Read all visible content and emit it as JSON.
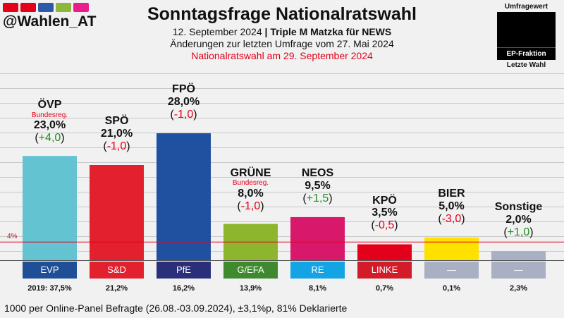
{
  "header": {
    "handle": "@Wahlen_AT",
    "flag_colors": [
      "#e2001a",
      "#e2001a",
      "#2d5aa8",
      "#8db63c",
      "#e91e8c"
    ],
    "title": "Sonntagsfrage Nationalratswahl",
    "subtitle_date": "12. September 2024",
    "subtitle_sep": " | ",
    "subtitle_source": "Triple M Matzka für NEWS",
    "subtitle_changes": "Änderungen zur letzten Umfrage vom 27. Mai 2024",
    "subtitle_election": "Nationalratswahl am 29. September 2024"
  },
  "legend": {
    "top": "Umfragewert",
    "middle": "EP-Fraktion",
    "bottom": "Letzte Wahl"
  },
  "threshold_label": "4%",
  "footer": "1000 per Online-Panel Befragte (26.08.-03.09.2024), ±3,1%p, 81% Deklarierte",
  "parties": [
    {
      "name": "ÖVP",
      "gov": "Bundesreg.",
      "pct": "23,0%",
      "change": "(+4,0)",
      "change_sign": "pos",
      "ep": "EVP",
      "last": "2019: 37,5%",
      "color": "#63c3d1",
      "ep_color": "#1f4f96"
    },
    {
      "name": "SPÖ",
      "gov": "",
      "pct": "21,0%",
      "change": "(-1,0)",
      "change_sign": "neg",
      "ep": "S&D",
      "last": "21,2%",
      "color": "#e3202e",
      "ep_color": "#e3202e"
    },
    {
      "name": "FPÖ",
      "gov": "",
      "pct": "28,0%",
      "change": "(-1,0)",
      "change_sign": "neg",
      "ep": "PfE",
      "last": "16,2%",
      "color": "#2050a0",
      "ep_color": "#2b2f7a"
    },
    {
      "name": "GRÜNE",
      "gov": "Bundesreg.",
      "pct": "8,0%",
      "change": "(-1,0)",
      "change_sign": "neg",
      "ep": "G/EFA",
      "last": "13,9%",
      "color": "#8db52e",
      "ep_color": "#3f8a2e"
    },
    {
      "name": "NEOS",
      "gov": "",
      "pct": "9,5%",
      "change": "(+1,5)",
      "change_sign": "pos",
      "ep": "RE",
      "last": "8,1%",
      "color": "#d8196b",
      "ep_color": "#14a4e6"
    },
    {
      "name": "KPÖ",
      "gov": "",
      "pct": "3,5%",
      "change": "(-0,5)",
      "change_sign": "neg",
      "ep": "LINKE",
      "last": "0,7%",
      "color": "#e2001a",
      "ep_color": "#d31b2a"
    },
    {
      "name": "BIER",
      "gov": "",
      "pct": "5,0%",
      "change": "(-3,0)",
      "change_sign": "neg",
      "ep": "—",
      "last": "0,1%",
      "color": "#ffe100",
      "ep_color": "#a9b0c4"
    },
    {
      "name": "Sonstige",
      "gov": "",
      "pct": "2,0%",
      "change": "(+1,0)",
      "change_sign": "pos",
      "ep": "—",
      "last": "2,3%",
      "color": "#a9b0c4",
      "ep_color": "#a9b0c4"
    }
  ],
  "chart_data": {
    "type": "bar",
    "categories": [
      "ÖVP",
      "SPÖ",
      "FPÖ",
      "GRÜNE",
      "NEOS",
      "KPÖ",
      "BIER",
      "Sonstige"
    ],
    "values": [
      23.0,
      21.0,
      28.0,
      8.0,
      9.5,
      3.5,
      5.0,
      2.0
    ],
    "changes": [
      4.0,
      -1.0,
      -1.0,
      -1.0,
      1.5,
      -0.5,
      -3.0,
      1.0
    ],
    "last_election": [
      37.5,
      21.2,
      16.2,
      13.9,
      8.1,
      0.7,
      0.1,
      2.3
    ],
    "threshold": 4,
    "ylim": [
      0,
      28
    ],
    "grid": true
  }
}
